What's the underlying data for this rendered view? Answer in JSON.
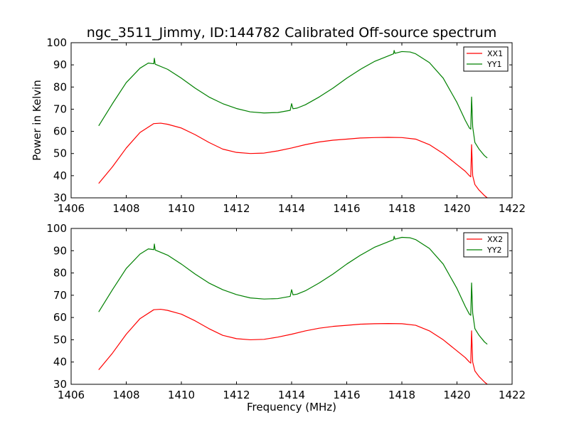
{
  "title": "ngc_3511_Jimmy, ID:144782 Calibrated Off-source spectrum",
  "chart_data": [
    {
      "type": "line",
      "xlabel": "",
      "ylabel": "Power in Kelvin",
      "xlim": [
        1406,
        1422
      ],
      "ylim": [
        30,
        100
      ],
      "xticks": [
        1406,
        1408,
        1410,
        1412,
        1414,
        1416,
        1418,
        1420,
        1422
      ],
      "yticks": [
        30,
        40,
        50,
        60,
        70,
        80,
        90,
        100
      ],
      "grid": false,
      "legend": "top-right",
      "series": [
        {
          "name": "XX1",
          "color": "#ff0000",
          "x": [
            1407.0,
            1407.5,
            1408.0,
            1408.5,
            1409.0,
            1409.25,
            1409.5,
            1410.0,
            1410.5,
            1411.0,
            1411.5,
            1412.0,
            1412.5,
            1413.0,
            1413.5,
            1414.0,
            1414.5,
            1415.0,
            1415.5,
            1416.0,
            1416.5,
            1417.0,
            1417.5,
            1418.0,
            1418.5,
            1419.0,
            1419.5,
            1420.0,
            1420.3,
            1420.45,
            1420.5,
            1420.53,
            1420.57,
            1420.65,
            1420.8,
            1421.0,
            1421.1
          ],
          "y": [
            36.5,
            44,
            52.5,
            59.5,
            63.5,
            63.7,
            63.2,
            61.5,
            58.5,
            55,
            52,
            50.5,
            50,
            50.2,
            51.2,
            52.5,
            54,
            55.2,
            56,
            56.5,
            57,
            57.2,
            57.3,
            57.2,
            56.5,
            54,
            50,
            45,
            42,
            40,
            39.5,
            54,
            40,
            36,
            33.5,
            31,
            30
          ]
        },
        {
          "name": "YY1",
          "color": "#008000",
          "x": [
            1407.0,
            1407.5,
            1408.0,
            1408.5,
            1408.8,
            1409.0,
            1409.02,
            1409.05,
            1409.5,
            1410.0,
            1410.5,
            1411.0,
            1411.5,
            1412.0,
            1412.5,
            1413.0,
            1413.5,
            1413.95,
            1414.0,
            1414.05,
            1414.2,
            1414.5,
            1415.0,
            1415.5,
            1416.0,
            1416.5,
            1417.0,
            1417.5,
            1417.7,
            1417.72,
            1417.75,
            1418.0,
            1418.3,
            1418.5,
            1419.0,
            1419.5,
            1420.0,
            1420.3,
            1420.45,
            1420.5,
            1420.53,
            1420.57,
            1420.65,
            1420.8,
            1421.0,
            1421.1
          ],
          "y": [
            62.5,
            72.5,
            82,
            88.5,
            90.8,
            90.5,
            93,
            90.3,
            88,
            84,
            79.5,
            75.5,
            72.5,
            70.3,
            68.8,
            68.3,
            68.5,
            69.5,
            72.5,
            70.2,
            70.5,
            72,
            75.5,
            79.5,
            84,
            88,
            91.5,
            94,
            95,
            96.5,
            95.2,
            96,
            95.8,
            95,
            91,
            84,
            73,
            65,
            61.5,
            61,
            75.5,
            62,
            55,
            52,
            49,
            48
          ]
        }
      ]
    },
    {
      "type": "line",
      "xlabel": "Frequency (MHz)",
      "ylabel": "",
      "xlim": [
        1406,
        1422
      ],
      "ylim": [
        30,
        100
      ],
      "xticks": [
        1406,
        1408,
        1410,
        1412,
        1414,
        1416,
        1418,
        1420,
        1422
      ],
      "yticks": [
        30,
        40,
        50,
        60,
        70,
        80,
        90,
        100
      ],
      "grid": false,
      "legend": "top-right",
      "series": [
        {
          "name": "XX2",
          "color": "#ff0000",
          "x": [
            1407.0,
            1407.5,
            1408.0,
            1408.5,
            1409.0,
            1409.25,
            1409.5,
            1410.0,
            1410.5,
            1411.0,
            1411.5,
            1412.0,
            1412.5,
            1413.0,
            1413.5,
            1414.0,
            1414.5,
            1415.0,
            1415.5,
            1416.0,
            1416.5,
            1417.0,
            1417.5,
            1418.0,
            1418.5,
            1419.0,
            1419.5,
            1420.0,
            1420.3,
            1420.45,
            1420.5,
            1420.53,
            1420.57,
            1420.65,
            1420.8,
            1421.0,
            1421.1
          ],
          "y": [
            36.5,
            44,
            52.5,
            59.5,
            63.5,
            63.7,
            63.2,
            61.5,
            58.5,
            55,
            52,
            50.5,
            50,
            50.2,
            51.2,
            52.5,
            54,
            55.2,
            56,
            56.5,
            57,
            57.2,
            57.3,
            57.2,
            56.5,
            54,
            50,
            45,
            42,
            40,
            39.5,
            54,
            40,
            36,
            33.5,
            31,
            30
          ]
        },
        {
          "name": "YY2",
          "color": "#008000",
          "x": [
            1407.0,
            1407.5,
            1408.0,
            1408.5,
            1408.8,
            1409.0,
            1409.02,
            1409.05,
            1409.5,
            1410.0,
            1410.5,
            1411.0,
            1411.5,
            1412.0,
            1412.5,
            1413.0,
            1413.5,
            1413.95,
            1414.0,
            1414.05,
            1414.2,
            1414.5,
            1415.0,
            1415.5,
            1416.0,
            1416.5,
            1417.0,
            1417.5,
            1417.7,
            1417.72,
            1417.75,
            1418.0,
            1418.3,
            1418.5,
            1419.0,
            1419.5,
            1420.0,
            1420.3,
            1420.45,
            1420.5,
            1420.53,
            1420.57,
            1420.65,
            1420.8,
            1421.0,
            1421.1
          ],
          "y": [
            62.5,
            72.5,
            82,
            88.5,
            90.8,
            90.5,
            93,
            90.3,
            88,
            84,
            79.5,
            75.5,
            72.5,
            70.3,
            68.8,
            68.3,
            68.5,
            69.5,
            72.5,
            70.2,
            70.5,
            72,
            75.5,
            79.5,
            84,
            88,
            91.5,
            94,
            95,
            96.5,
            95.2,
            96,
            95.8,
            95,
            91,
            84,
            73,
            65,
            61.5,
            61,
            75.5,
            62,
            55,
            52,
            49,
            48
          ]
        }
      ]
    }
  ]
}
